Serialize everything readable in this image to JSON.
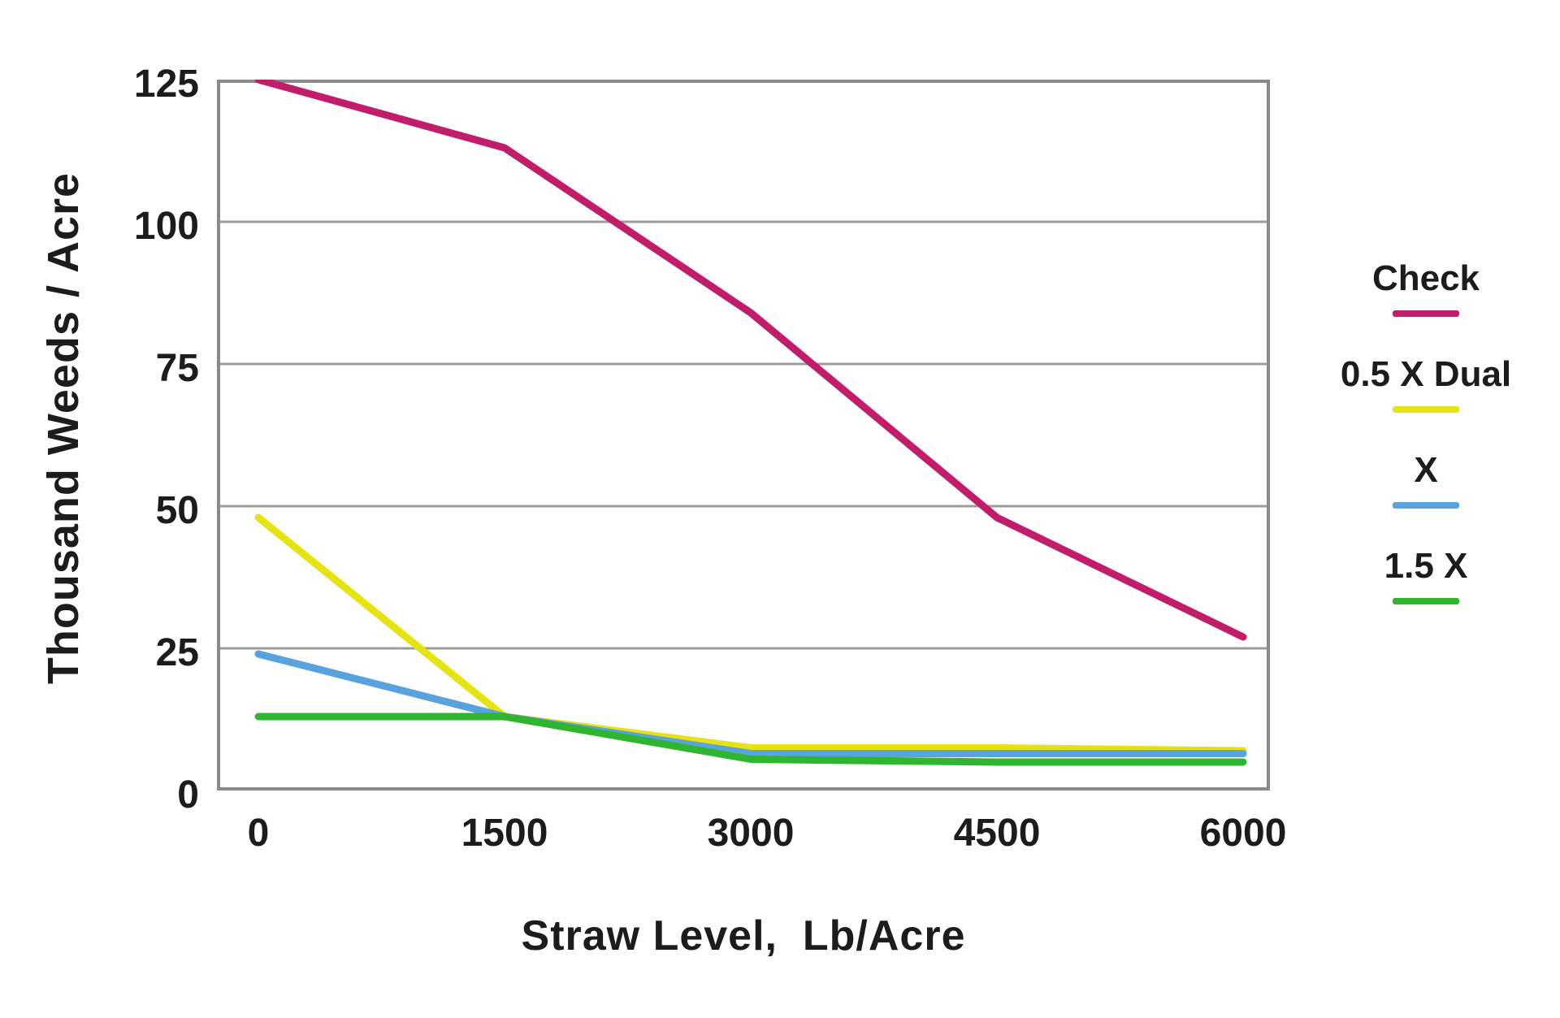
{
  "chart_data": {
    "type": "line",
    "title": "",
    "xlabel": "Straw Level,  Lb/Acre",
    "ylabel": "Thousand Weeds / Acre",
    "x": [
      0,
      1500,
      3000,
      4500,
      6000
    ],
    "x_tick_labels": [
      "0",
      "1500",
      "3000",
      "4500",
      "6000"
    ],
    "y_ticks": [
      0,
      25,
      50,
      75,
      100,
      125
    ],
    "xlim": [
      0,
      6000
    ],
    "ylim": [
      0,
      125
    ],
    "grid": "horizontal",
    "legend_position": "right",
    "series": [
      {
        "name": "Check",
        "color": "#c11d6a",
        "values": [
          125,
          113,
          84,
          48,
          27
        ]
      },
      {
        "name": "0.5 X Dual",
        "color": "#e6e312",
        "values": [
          48,
          13,
          7.5,
          7.5,
          7
        ]
      },
      {
        "name": "X",
        "color": "#58a3de",
        "values": [
          24,
          13,
          6.5,
          6.5,
          6.5
        ]
      },
      {
        "name": "1.5 X",
        "color": "#30b530",
        "values": [
          13,
          13,
          5.5,
          5,
          5
        ]
      }
    ],
    "frame_color": "#8a8a8a",
    "grid_color": "#9c9c9c",
    "text_color": "#1c1c1c",
    "background_color": "#ffffff"
  }
}
